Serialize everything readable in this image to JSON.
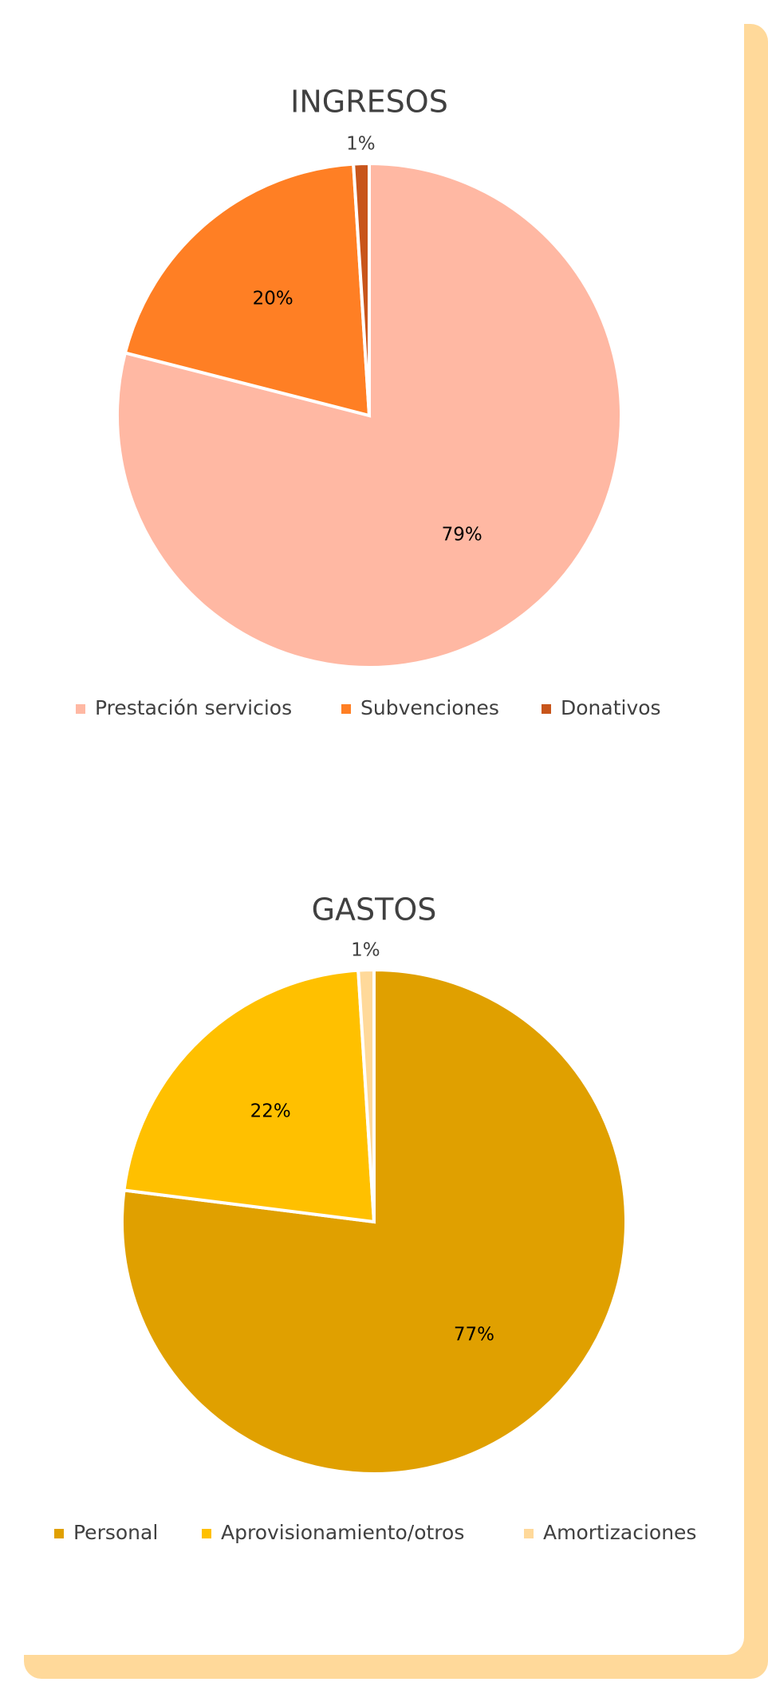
{
  "chart_data": [
    {
      "type": "pie",
      "title": "INGRESOS",
      "categories": [
        "Prestación servicios",
        "Subvenciones",
        "Donativos"
      ],
      "values": [
        79,
        20,
        1
      ],
      "value_labels": [
        "79%",
        "20%",
        "1%"
      ],
      "colors": [
        "#ffb8a3",
        "#ff7f24",
        "#c8551b"
      ]
    },
    {
      "type": "pie",
      "title": "GASTOS",
      "categories": [
        "Personal",
        "Aprovisionamiento/otros",
        "Amortizaciones"
      ],
      "values": [
        77,
        22,
        1
      ],
      "value_labels": [
        "77%",
        "22%",
        "1%"
      ],
      "colors": [
        "#e0a000",
        "#ffc000",
        "#ffd99a"
      ]
    }
  ]
}
